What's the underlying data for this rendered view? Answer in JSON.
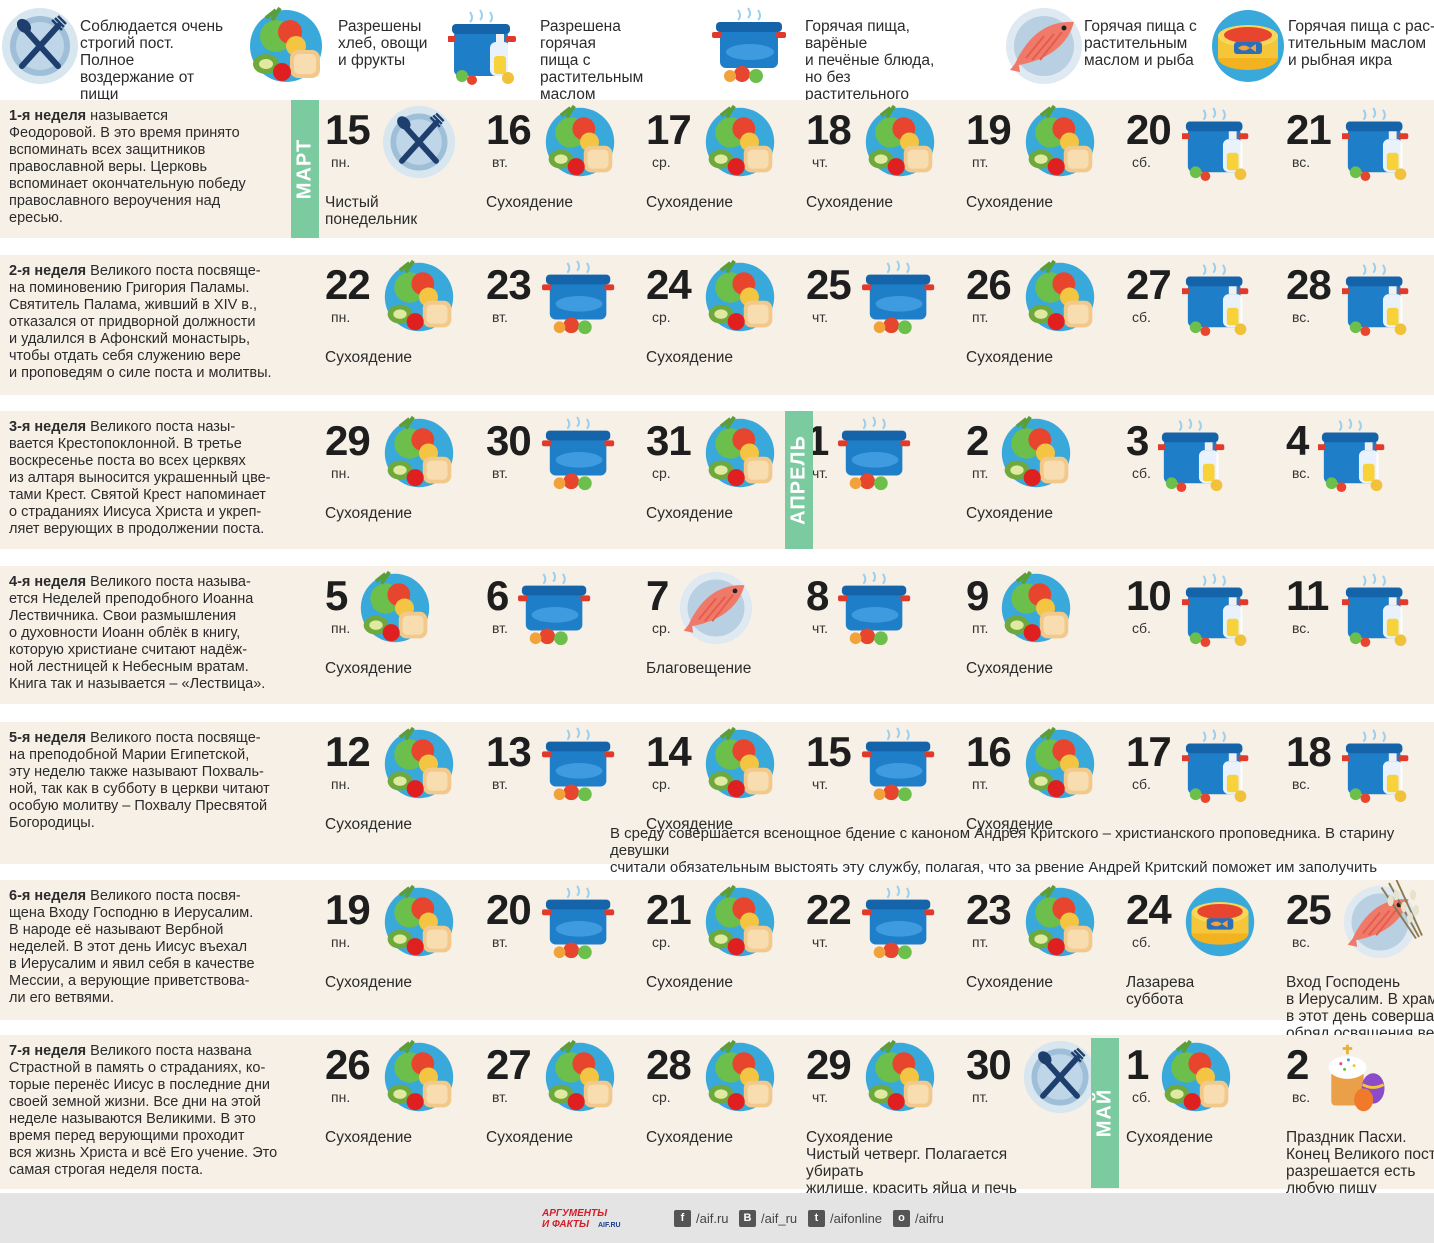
{
  "legend": [
    {
      "icon": "plate-fork-knife-icon",
      "text": "Соблюдается очень\nстрогий пост. Полное\nвоздержание от пищи"
    },
    {
      "icon": "vegetables-bread-icon",
      "text": "Разрешены\nхлеб, овощи\nи фрукты"
    },
    {
      "icon": "pot-oil-icon",
      "text": "Разрешена горячая\nпища с растительным\nмаслом"
    },
    {
      "icon": "pot-vegetables-icon",
      "text": "Горячая пища, варёные\nи печёные блюда, но без\nрастительного масла"
    },
    {
      "icon": "fish-plate-icon",
      "text": "Горячая пища с\nрастительным\nмаслом и рыба"
    },
    {
      "icon": "caviar-tin-icon",
      "text": "Горячая пища с рас-\nтительным маслом\nи рыбная икра"
    }
  ],
  "colors": {
    "row_bg": "#f6f0e6",
    "month_band": "#7ccba0",
    "footer_bg": "#e4e4e4",
    "pot_blue": "#1e7ec8",
    "plate_blue": "#cfe6f5"
  },
  "weeks": [
    {
      "title": "1-я неделя",
      "text": " называется\nФеодоровой. В это время принято\nвспоминать всех защитников\nправославной веры. Церковь\nвспоминает окончательную победу\nправославного вероучения над\nересью.",
      "days": [
        {
          "num": "15",
          "dow": "пн.",
          "icon": "plate-fork-knife-icon",
          "note": "Чистый\nпонедельник"
        },
        {
          "num": "16",
          "dow": "вт.",
          "icon": "vegetables-bread-icon",
          "note": "Сухоядение"
        },
        {
          "num": "17",
          "dow": "ср.",
          "icon": "vegetables-bread-icon",
          "note": "Сухоядение"
        },
        {
          "num": "18",
          "dow": "чт.",
          "icon": "vegetables-bread-icon",
          "note": "Сухоядение"
        },
        {
          "num": "19",
          "dow": "пт.",
          "icon": "vegetables-bread-icon",
          "note": "Сухоядение"
        },
        {
          "num": "20",
          "dow": "сб.",
          "icon": "pot-oil-icon",
          "note": ""
        },
        {
          "num": "21",
          "dow": "вс.",
          "icon": "pot-oil-icon",
          "note": ""
        }
      ]
    },
    {
      "title": "2-я неделя",
      "text": " Великого поста посвяще-\nна поминовению Григория Паламы.\nСвятитель Палама, живший в XIV в.,\nотказался от придворной должности\nи удалился в Афонский монастырь,\nчтобы отдать себя служению вере\nи проповедям о силе поста и молитвы.",
      "days": [
        {
          "num": "22",
          "dow": "пн.",
          "icon": "vegetables-bread-icon",
          "note": "Сухоядение"
        },
        {
          "num": "23",
          "dow": "вт.",
          "icon": "pot-vegetables-icon",
          "note": ""
        },
        {
          "num": "24",
          "dow": "ср.",
          "icon": "vegetables-bread-icon",
          "note": "Сухоядение"
        },
        {
          "num": "25",
          "dow": "чт.",
          "icon": "pot-vegetables-icon",
          "note": ""
        },
        {
          "num": "26",
          "dow": "пт.",
          "icon": "vegetables-bread-icon",
          "note": "Сухоядение"
        },
        {
          "num": "27",
          "dow": "сб.",
          "icon": "pot-oil-icon",
          "note": ""
        },
        {
          "num": "28",
          "dow": "вс.",
          "icon": "pot-oil-icon",
          "note": ""
        }
      ]
    },
    {
      "title": "3-я неделя",
      "text": " Великого поста назы-\nвается Крестопоклонной. В третье\nвоскресенье поста во всех церквях\nиз алтаря выносится украшенный цве-\nтами Крест. Святой Крест напоминает\nо страданиях Иисуса Христа и укреп-\nляет верующих в продолжении поста.",
      "days": [
        {
          "num": "29",
          "dow": "пн.",
          "icon": "vegetables-bread-icon",
          "note": "Сухоядение"
        },
        {
          "num": "30",
          "dow": "вт.",
          "icon": "pot-vegetables-icon",
          "note": ""
        },
        {
          "num": "31",
          "dow": "ср.",
          "icon": "vegetables-bread-icon",
          "note": "Сухоядение"
        },
        {
          "num": "1",
          "dow": "чт.",
          "icon": "pot-vegetables-icon",
          "note": ""
        },
        {
          "num": "2",
          "dow": "пт.",
          "icon": "vegetables-bread-icon",
          "note": "Сухоядение"
        },
        {
          "num": "3",
          "dow": "сб.",
          "icon": "pot-oil-icon",
          "note": ""
        },
        {
          "num": "4",
          "dow": "вс.",
          "icon": "pot-oil-icon",
          "note": ""
        }
      ]
    },
    {
      "title": "4-я неделя",
      "text": " Великого поста называ-\nется Неделей преподобного Иоанна\nЛествичника. Свои размышления\nо духовности Иоанн облёк в книгу,\nкоторую христиане считают надёж-\nной лестницей к Небесным вратам.\nКнига так и называется – «Лествица».",
      "days": [
        {
          "num": "5",
          "dow": "пн.",
          "icon": "vegetables-bread-icon",
          "note": "Сухоядение"
        },
        {
          "num": "6",
          "dow": "вт.",
          "icon": "pot-vegetables-icon",
          "note": ""
        },
        {
          "num": "7",
          "dow": "ср.",
          "icon": "fish-plate-icon",
          "note": "Благовещение"
        },
        {
          "num": "8",
          "dow": "чт.",
          "icon": "pot-vegetables-icon",
          "note": ""
        },
        {
          "num": "9",
          "dow": "пт.",
          "icon": "vegetables-bread-icon",
          "note": "Сухоядение"
        },
        {
          "num": "10",
          "dow": "сб.",
          "icon": "pot-oil-icon",
          "note": ""
        },
        {
          "num": "11",
          "dow": "вс.",
          "icon": "pot-oil-icon",
          "note": ""
        }
      ]
    },
    {
      "title": "5-я неделя",
      "text": " Великого поста посвяще-\nна преподобной Марии Египетской,\nэту неделю также называют Похваль-\nной, так как в субботу в церкви читают\nособую молитву – Похвалу Пресвятой\nБогородицы.",
      "days": [
        {
          "num": "12",
          "dow": "пн.",
          "icon": "vegetables-bread-icon",
          "note": "Сухоядение"
        },
        {
          "num": "13",
          "dow": "вт.",
          "icon": "pot-vegetables-icon",
          "note": ""
        },
        {
          "num": "14",
          "dow": "ср.",
          "icon": "vegetables-bread-icon",
          "note": "Сухоядение"
        },
        {
          "num": "15",
          "dow": "чт.",
          "icon": "pot-vegetables-icon",
          "note": ""
        },
        {
          "num": "16",
          "dow": "пт.",
          "icon": "vegetables-bread-icon",
          "note": "Сухоядение"
        },
        {
          "num": "17",
          "dow": "сб.",
          "icon": "pot-oil-icon",
          "note": ""
        },
        {
          "num": "18",
          "dow": "вс.",
          "icon": "pot-oil-icon",
          "note": ""
        }
      ],
      "extra": "В среду совершается всенощное бдение с каноном Андрея Критского – христианского проповедника. В старину девушки\nсчитали обязательным выстоять эту службу, полагая, что за рвение Андрей Критский поможет им заполучить женихов."
    },
    {
      "title": "6-я неделя",
      "text": " Великого поста посвя-\nщена Входу Господню в Иерусалим.\nВ народе её называют Вербной\nнеделей. В этот день Иисус въехал\nв Иерусалим и явил себя в качестве\nМессии, а верующие приветствова-\nли его ветвями.",
      "days": [
        {
          "num": "19",
          "dow": "пн.",
          "icon": "vegetables-bread-icon",
          "note": "Сухоядение"
        },
        {
          "num": "20",
          "dow": "вт.",
          "icon": "pot-vegetables-icon",
          "note": ""
        },
        {
          "num": "21",
          "dow": "ср.",
          "icon": "vegetables-bread-icon",
          "note": "Сухоядение"
        },
        {
          "num": "22",
          "dow": "чт.",
          "icon": "pot-vegetables-icon",
          "note": ""
        },
        {
          "num": "23",
          "dow": "пт.",
          "icon": "vegetables-bread-icon",
          "note": "Сухоядение"
        },
        {
          "num": "24",
          "dow": "сб.",
          "icon": "caviar-tin-icon",
          "note": "Лазарева\nсуббота"
        },
        {
          "num": "25",
          "dow": "вс.",
          "icon": "fish-plate-icon",
          "note": "Вход Господень\nв Иерусалим. В храмах\nв этот день совершается\nобряд освящения вербы"
        }
      ]
    },
    {
      "title": "7-я неделя",
      "text": " Великого поста названа\nСтрастной в память о страданиях, ко-\nторые перенёс Иисус в последние дни\nсвоей земной жизни. Все дни на этой\nнеделе называются Великими. В это\nвремя перед верующими проходит\nвся жизнь Христа и всё Его учение. Это\nсамая строгая неделя поста.",
      "days": [
        {
          "num": "26",
          "dow": "пн.",
          "icon": "vegetables-bread-icon",
          "note": "Сухоядение"
        },
        {
          "num": "27",
          "dow": "вт.",
          "icon": "vegetables-bread-icon",
          "note": "Сухоядение"
        },
        {
          "num": "28",
          "dow": "ср.",
          "icon": "vegetables-bread-icon",
          "note": "Сухоядение"
        },
        {
          "num": "29",
          "dow": "чт.",
          "icon": "vegetables-bread-icon",
          "note": "Сухоядение\nЧистый четверг. Полагается убирать\nжилище, красить яйца и печь куличи"
        },
        {
          "num": "30",
          "dow": "пт.",
          "icon": "plate-fork-knife-icon",
          "note": ""
        },
        {
          "num": "1",
          "dow": "сб.",
          "icon": "vegetables-bread-icon",
          "note": "Сухоядение"
        },
        {
          "num": "2",
          "dow": "вс.",
          "icon": "easter-cake-icon",
          "note": "Праздник Пасхи.\nКонец Великого поста,\nразрешается есть\nлюбую пищу"
        }
      ]
    }
  ],
  "months": [
    {
      "label": "МАРТ"
    },
    {
      "label": "АПРЕЛЬ"
    },
    {
      "label": "МАЙ"
    }
  ],
  "footer": {
    "logo_text": "АРГУМЕНТЫ И ФАКТЫ AIF.RU",
    "links": [
      {
        "icon": "facebook-icon",
        "glyph": "f",
        "text": "/aif.ru"
      },
      {
        "icon": "vk-icon",
        "glyph": "В",
        "text": "/aif_ru"
      },
      {
        "icon": "twitter-icon",
        "glyph": "t",
        "text": "/aifonline"
      },
      {
        "icon": "odnoklassniki-icon",
        "glyph": "о",
        "text": "/aifru"
      }
    ]
  }
}
